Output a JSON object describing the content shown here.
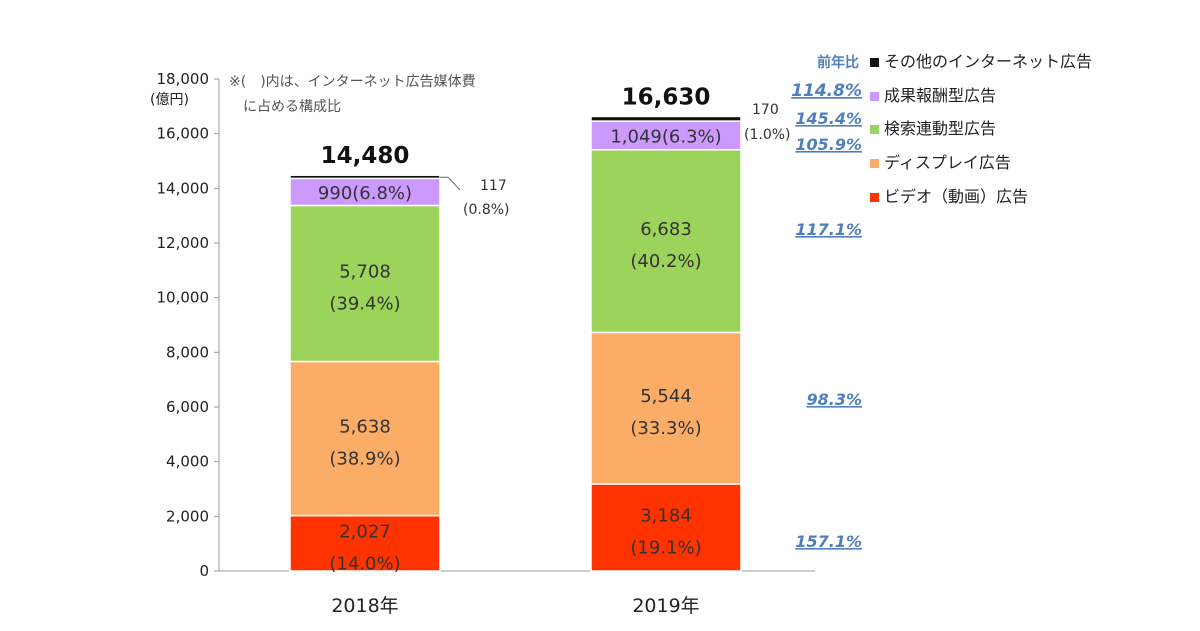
{
  "chart_data": {
    "type": "bar",
    "stacked": true,
    "categories": [
      "2018年",
      "2019年"
    ],
    "ylim": [
      0,
      18000
    ],
    "y_ticks": [
      "0",
      "2,000",
      "4,000",
      "6,000",
      "8,000",
      "10,000",
      "12,000",
      "14,000",
      "16,000",
      "18,000"
    ],
    "ylabel": "(億円)",
    "note_line1": "※(　)内は、インターネット広告媒体費",
    "note_line2": "に占める構成比",
    "grid": false,
    "legend_position": "right",
    "series": [
      {
        "name": "ビデオ（動画）広告",
        "color": "#ff3300",
        "values": [
          2027,
          3184
        ],
        "labels": [
          [
            "2,027",
            "(14.0%)"
          ],
          [
            "3,184",
            "(19.1%)"
          ]
        ]
      },
      {
        "name": "ディスプレイ広告",
        "color": "#fbad67",
        "values": [
          5638,
          5544
        ],
        "labels": [
          [
            "5,638",
            "(38.9%)"
          ],
          [
            "5,544",
            "(33.3%)"
          ]
        ]
      },
      {
        "name": "検索連動型広告",
        "color": "#9cd35a",
        "values": [
          5708,
          6683
        ],
        "labels": [
          [
            "5,708",
            "(39.4%)"
          ],
          [
            "6,683",
            "(40.2%)"
          ]
        ]
      },
      {
        "name": "成果報酬型広告",
        "color": "#cc99ff",
        "values": [
          990,
          1049
        ],
        "labels": [
          [
            "990(6.8%)"
          ],
          [
            "1,049(6.3%)"
          ]
        ]
      },
      {
        "name": "その他のインターネット広告",
        "color": "#111111",
        "values": [
          117,
          170
        ],
        "labels": [
          [
            "117",
            "(0.8%)"
          ],
          [
            "170",
            "(1.0%)"
          ]
        ]
      }
    ],
    "totals": [
      "14,480",
      "16,630"
    ],
    "yoy_title": "前年比",
    "yoy": [
      {
        "value": 1663,
        "label": "114.8%"
      },
      {
        "value": 1049,
        "label": "145.4%"
      },
      {
        "value": 6683,
        "label": "105.9%"
      },
      {
        "value": 5544,
        "label": "117.1%"
      },
      {
        "value": 3184,
        "label": "98.3%"
      },
      {
        "value": 0,
        "label": "157.1%"
      }
    ],
    "legend_order": [
      "その他のインターネット広告",
      "成果報酬型広告",
      "検索連動型広告",
      "ディスプレイ広告",
      "ビデオ（動画）広告"
    ]
  }
}
